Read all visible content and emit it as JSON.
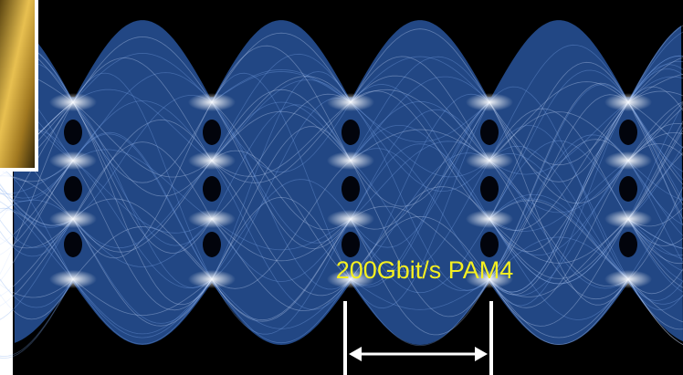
{
  "annotation": {
    "text": "200Gbit/s PAM4"
  }
}
